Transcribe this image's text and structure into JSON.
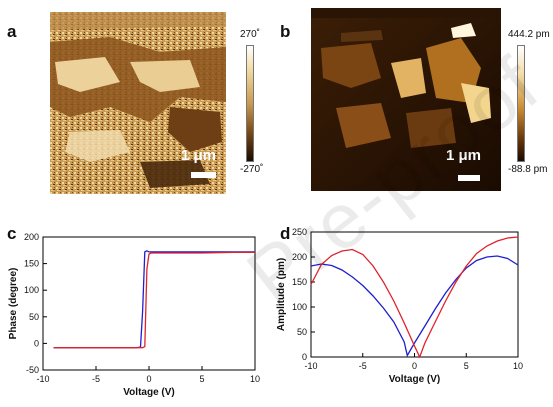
{
  "panels": {
    "a": {
      "letter": "a",
      "scalebar_label": "1 μm",
      "colorbar_max": "270˚",
      "colorbar_min": "-270˚"
    },
    "b": {
      "letter": "b",
      "scalebar_label": "1 μm",
      "colorbar_max": "444.2 pm",
      "colorbar_min": "-88.8 pm"
    },
    "c": {
      "letter": "c"
    },
    "d": {
      "letter": "d"
    }
  },
  "watermark": "Pre-proof",
  "colors": {
    "blue": "#1f1fd0",
    "red": "#e0222b",
    "afm_dark": "#3a1f08",
    "afm_light": "#f3dca6"
  },
  "chart_data": [
    {
      "type": "line",
      "panel": "c",
      "xlabel": "Voltage (V)",
      "ylabel": "Phase (degree)",
      "xlim": [
        -10,
        10
      ],
      "ylim": [
        -50,
        200
      ],
      "xticks": [
        -10,
        -5,
        0,
        5,
        10
      ],
      "yticks": [
        -50,
        0,
        50,
        100,
        150,
        200
      ],
      "series": [
        {
          "color": "blue",
          "x": [
            -9,
            -6,
            -3,
            -1.2,
            -0.8,
            -0.6,
            -0.4,
            -0.2,
            0,
            2,
            5,
            8,
            10
          ],
          "y": [
            -8,
            -8,
            -8,
            -8,
            -7,
            60,
            172,
            174,
            172,
            172,
            172,
            172,
            172
          ]
        },
        {
          "color": "red",
          "x": [
            -9,
            -6,
            -3,
            -1,
            -0.6,
            -0.4,
            -0.2,
            0,
            0.2,
            2,
            5,
            8,
            10
          ],
          "y": [
            -8,
            -8,
            -8,
            -8,
            -8,
            -6,
            140,
            168,
            170,
            170,
            170,
            171,
            171
          ]
        }
      ]
    },
    {
      "type": "line",
      "panel": "d",
      "xlabel": "Voltage (V)",
      "ylabel": "Amplitude (pm)",
      "xlim": [
        -10,
        10
      ],
      "ylim": [
        0,
        250
      ],
      "xticks": [
        -10,
        -5,
        0,
        5,
        10
      ],
      "yticks": [
        0,
        50,
        100,
        150,
        200,
        250
      ],
      "series": [
        {
          "color": "blue",
          "x": [
            -10,
            -9,
            -8,
            -7,
            -6,
            -5,
            -4,
            -3,
            -2,
            -1,
            -0.7,
            0,
            1,
            2,
            3,
            4,
            5,
            6,
            7,
            8,
            9,
            10
          ],
          "y": [
            182,
            186,
            183,
            174,
            160,
            143,
            122,
            98,
            70,
            30,
            3,
            28,
            62,
            96,
            128,
            155,
            178,
            193,
            200,
            202,
            197,
            184
          ]
        },
        {
          "color": "red",
          "x": [
            -10,
            -9,
            -8,
            -7,
            -6,
            -5,
            -4,
            -3,
            -2,
            -1,
            0,
            0.5,
            1,
            2,
            3,
            4,
            5,
            6,
            7,
            8,
            9,
            10
          ],
          "y": [
            145,
            185,
            203,
            212,
            215,
            205,
            182,
            150,
            112,
            68,
            22,
            0,
            28,
            70,
            112,
            150,
            182,
            207,
            222,
            232,
            238,
            240
          ]
        }
      ]
    }
  ]
}
